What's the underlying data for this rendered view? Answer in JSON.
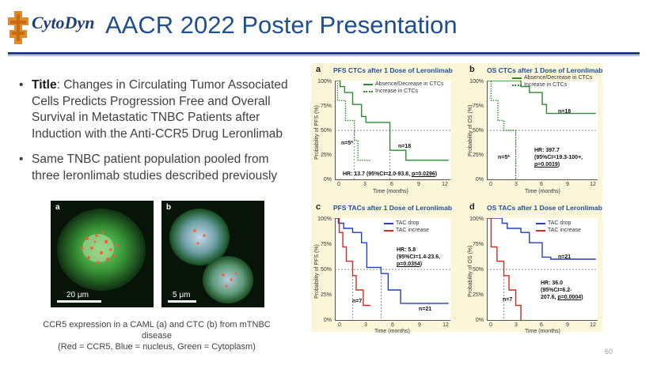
{
  "logo": {
    "text": "CytoDyn"
  },
  "slide": {
    "title": "AACR 2022 Poster Presentation",
    "page_number": "60"
  },
  "bullets": [
    {
      "label": "Title",
      "text": ": Changes in Circulating Tumor Associated Cells Predicts Progression Free and Overall Survival in Metastatic TNBC Patients after Induction with the Anti-CCR5 Drug Leronlimab"
    },
    {
      "text": "Same TNBC patient population pooled from three leronlimab studies described previously"
    }
  ],
  "images": {
    "a": {
      "label": "a",
      "scale": "20 μm"
    },
    "b": {
      "label": "b",
      "scale": "5 μm"
    },
    "caption_line1": "CCR5 expression in a CAML (a) and CTC (b) from mTNBC disease",
    "caption_line2": "(Red = CCR5, Blue = nucleus, Green = Cytoplasm)"
  },
  "colors": {
    "accent": "#1f4f8c",
    "green": "#2e8b2e",
    "blue": "#1f3fbf",
    "red": "#d42a1e",
    "figure_bg": "#fbf6d8"
  },
  "panels": {
    "a": {
      "letter": "a",
      "title": "PFS CTCs after 1 Dose of Leronlimab",
      "ylabel": "Probability of PFS (%)",
      "xlabel": "Time (months)",
      "yticks": [
        "100%",
        "75%",
        "50%",
        "25%",
        "0%"
      ],
      "xticks": [
        "0",
        "3",
        "6",
        "9",
        "12"
      ],
      "legend": [
        "Absence/Decrease in CTCs",
        "Increase in CTCs"
      ],
      "ann1": "n=5*",
      "ann2": "n=18",
      "hr_prefix": "HR: 13.7 (95%CI=2.0-93.8, ",
      "hr_p": "p=0.0296",
      "hr_suffix": ")"
    },
    "b": {
      "letter": "b",
      "title": "OS CTCs after 1 Dose of Leronlimab",
      "ylabel": "Probability of OS (%)",
      "xlabel": "Time (months)",
      "yticks": [
        "100%",
        "75%",
        "50%",
        "25%",
        "0%"
      ],
      "xticks": [
        "0",
        "3",
        "6",
        "9",
        "12"
      ],
      "legend": [
        "Absence/Decrease in CTCs",
        "Increase in CTCs"
      ],
      "ann1": "n=18",
      "ann2": "n=5*",
      "hr_line1": "HR: 397.7",
      "hr_line2": "(95%CI=19.3-100+,",
      "hr_p": "p=0.0019",
      "hr_suffix": ")"
    },
    "c": {
      "letter": "c",
      "title": "PFS TACs after 1 Dose of Leronlimab",
      "ylabel": "Probability of PFS (%)",
      "xlabel": "Time (months)",
      "yticks": [
        "100%",
        "75%",
        "50%",
        "25%",
        "0%"
      ],
      "xticks": [
        "0",
        "3",
        "6",
        "9",
        "12"
      ],
      "legend": [
        "TAC drop",
        "TAC increase"
      ],
      "ann1": "n=7",
      "ann2": "n=21",
      "hr_line1": "HR: 5.8",
      "hr_line2": "(95%CI=1.4-23.6,",
      "hr_p": "p=0.0354",
      "hr_suffix": ")"
    },
    "d": {
      "letter": "d",
      "title": "OS TACs after 1 Dose of Leronlimab",
      "ylabel": "Probability of OS (%)",
      "xlabel": "Time (months)",
      "yticks": [
        "100%",
        "75%",
        "50%",
        "25%",
        "0%"
      ],
      "xticks": [
        "0",
        "3",
        "6",
        "9",
        "12"
      ],
      "legend": [
        "TAC drop",
        "TAC increase"
      ],
      "ann1": "n=21",
      "ann2": "n=7",
      "hr_line1": "HR: 36.0",
      "hr_line2": "(95%CI=6.2-",
      "hr_line3": "207.6, ",
      "hr_p": "p=0.0004",
      "hr_suffix": ")"
    }
  },
  "chart_data": [
    {
      "type": "line",
      "panel": "a",
      "title": "PFS CTCs after 1 Dose of Leronlimab",
      "xlabel": "Time (months)",
      "ylabel": "Probability of PFS (%)",
      "xlim": [
        0,
        13
      ],
      "ylim": [
        0,
        100
      ],
      "series": [
        {
          "name": "Absence/Decrease in CTCs",
          "style": "solid",
          "x": [
            0,
            0.6,
            0.6,
            1.1,
            1.1,
            2.0,
            2.0,
            3.0,
            3.0,
            3.5,
            3.5,
            6.2,
            6.2,
            8.0,
            8.0,
            12.8
          ],
          "y": [
            100,
            100,
            94,
            94,
            88,
            88,
            76,
            76,
            64,
            64,
            58,
            58,
            30,
            30,
            20,
            20
          ]
        },
        {
          "name": "Increase in CTCs",
          "style": "dotted",
          "x": [
            0,
            0.3,
            0.3,
            1.2,
            1.2,
            2.2,
            2.2,
            2.6,
            2.6,
            4.0
          ],
          "y": [
            100,
            100,
            80,
            80,
            60,
            60,
            40,
            40,
            20,
            20
          ]
        }
      ]
    },
    {
      "type": "line",
      "panel": "b",
      "title": "OS CTCs after 1 Dose of Leronlimab",
      "xlabel": "Time (months)",
      "ylabel": "Probability of OS (%)",
      "xlim": [
        0,
        13
      ],
      "ylim": [
        0,
        100
      ],
      "series": [
        {
          "name": "Absence/Decrease in CTCs",
          "style": "solid",
          "x": [
            0,
            4.0,
            4.0,
            5.0,
            5.0,
            6.5,
            6.5,
            7.0,
            7.0,
            10.0,
            10.0,
            12.8
          ],
          "y": [
            100,
            100,
            94,
            94,
            88,
            88,
            76,
            76,
            67,
            67,
            67,
            67
          ]
        },
        {
          "name": "Increase in CTCs",
          "style": "dotted",
          "x": [
            0,
            0.5,
            0.5,
            1.3,
            1.3,
            2.0,
            2.0,
            3.4,
            3.4,
            4.2
          ],
          "y": [
            100,
            100,
            80,
            80,
            60,
            60,
            50,
            50,
            0,
            0
          ]
        }
      ]
    },
    {
      "type": "line",
      "panel": "c",
      "title": "PFS TACs after 1 Dose of Leronlimab",
      "xlabel": "Time (months)",
      "ylabel": "Probability of PFS (%)",
      "xlim": [
        0,
        13
      ],
      "ylim": [
        0,
        100
      ],
      "series": [
        {
          "name": "TAC drop",
          "color": "#1f3fbf",
          "x": [
            0,
            0.4,
            0.4,
            1.0,
            1.0,
            2.0,
            2.0,
            3.0,
            3.0,
            3.6,
            3.6,
            5.2,
            5.2,
            6.0,
            6.0,
            7.4,
            7.4,
            8.0,
            8.0,
            12.8
          ],
          "y": [
            100,
            100,
            95,
            95,
            90,
            90,
            86,
            86,
            76,
            76,
            52,
            52,
            46,
            46,
            30,
            30,
            17,
            17,
            17,
            17
          ]
        },
        {
          "name": "TAC increase",
          "color": "#d42a1e",
          "x": [
            0,
            0.5,
            0.5,
            0.9,
            0.9,
            1.3,
            1.3,
            2.0,
            2.0,
            2.4,
            2.4,
            3.2,
            3.2,
            4.0
          ],
          "y": [
            100,
            100,
            86,
            86,
            72,
            72,
            58,
            58,
            44,
            44,
            30,
            30,
            15,
            15
          ]
        }
      ]
    },
    {
      "type": "line",
      "panel": "d",
      "title": "OS TACs after 1 Dose of Leronlimab",
      "xlabel": "Time (months)",
      "ylabel": "Probability of OS (%)",
      "xlim": [
        0,
        13
      ],
      "ylim": [
        0,
        100
      ],
      "series": [
        {
          "name": "TAC drop",
          "color": "#1f3fbf",
          "x": [
            0,
            1.8,
            1.8,
            2.4,
            2.4,
            4.0,
            4.0,
            5.0,
            5.0,
            6.5,
            6.5,
            7.5,
            7.5,
            12.8
          ],
          "y": [
            100,
            100,
            95,
            95,
            90,
            90,
            86,
            86,
            76,
            76,
            62,
            62,
            60,
            60
          ]
        },
        {
          "name": "TAC increase",
          "color": "#d42a1e",
          "x": [
            0,
            0.5,
            0.5,
            1.2,
            1.2,
            2.0,
            2.0,
            2.6,
            2.6,
            3.4,
            3.4,
            4.0,
            4.0,
            5.0
          ],
          "y": [
            100,
            100,
            72,
            72,
            58,
            58,
            44,
            44,
            30,
            30,
            15,
            15,
            0,
            0
          ]
        }
      ]
    }
  ]
}
